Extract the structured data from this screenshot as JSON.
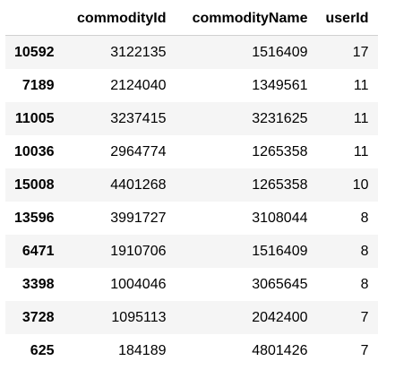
{
  "table": {
    "columns": [
      "",
      "commodityId",
      "commodityName",
      "userId"
    ],
    "rows": [
      {
        "index": "10592",
        "commodityId": "3122135",
        "commodityName": "1516409",
        "userId": "17"
      },
      {
        "index": "7189",
        "commodityId": "2124040",
        "commodityName": "1349561",
        "userId": "11"
      },
      {
        "index": "11005",
        "commodityId": "3237415",
        "commodityName": "3231625",
        "userId": "11"
      },
      {
        "index": "10036",
        "commodityId": "2964774",
        "commodityName": "1265358",
        "userId": "11"
      },
      {
        "index": "15008",
        "commodityId": "4401268",
        "commodityName": "1265358",
        "userId": "10"
      },
      {
        "index": "13596",
        "commodityId": "3991727",
        "commodityName": "3108044",
        "userId": "8"
      },
      {
        "index": "6471",
        "commodityId": "1910706",
        "commodityName": "1516409",
        "userId": "8"
      },
      {
        "index": "3398",
        "commodityId": "1004046",
        "commodityName": "3065645",
        "userId": "8"
      },
      {
        "index": "3728",
        "commodityId": "1095113",
        "commodityName": "2042400",
        "userId": "7"
      },
      {
        "index": "625",
        "commodityId": "184189",
        "commodityName": "4801426",
        "userId": "7"
      }
    ]
  },
  "colors": {
    "stripe": "#f5f5f5",
    "header_border": "#d0d0d0"
  }
}
